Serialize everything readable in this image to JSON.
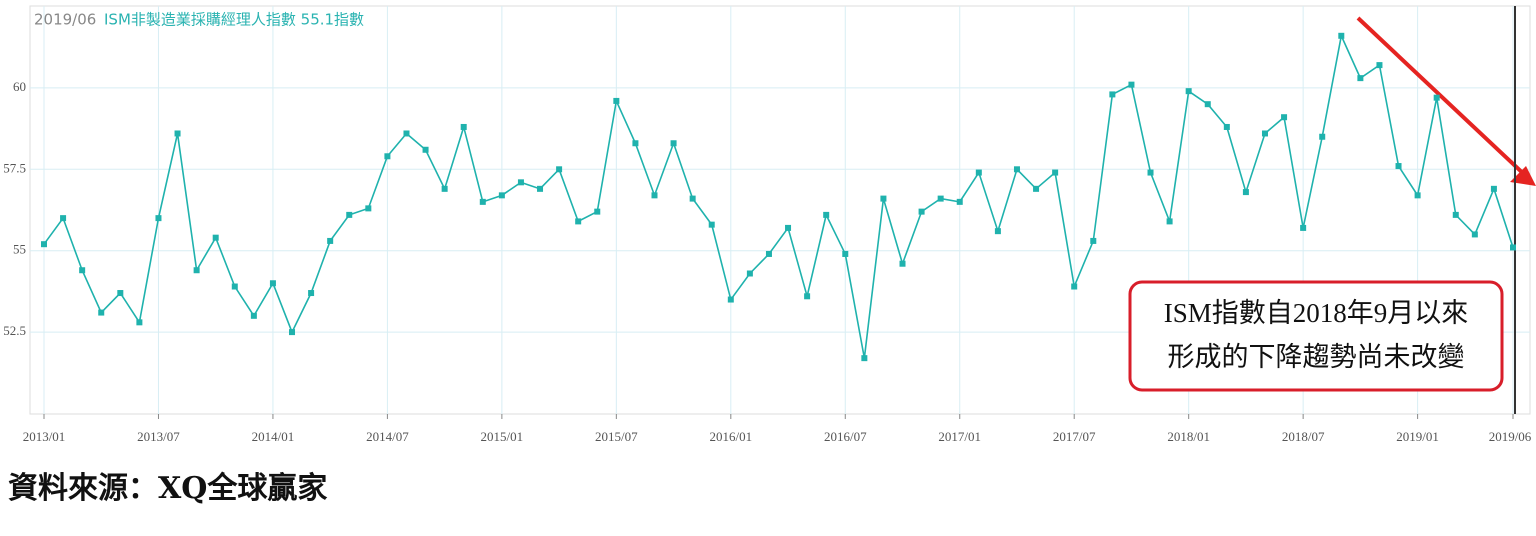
{
  "chart_data": {
    "type": "line",
    "header_date": "2019/06",
    "header_title": "ISM非製造業採購經理人指數 55.1指數",
    "categories": [
      "2013/01",
      null,
      null,
      null,
      null,
      null,
      "2013/07",
      null,
      null,
      null,
      null,
      null,
      "2014/01",
      null,
      null,
      null,
      null,
      null,
      "2014/07",
      null,
      null,
      null,
      null,
      null,
      "2015/01",
      null,
      null,
      null,
      null,
      null,
      "2015/07",
      null,
      null,
      null,
      null,
      null,
      "2016/01",
      null,
      null,
      null,
      null,
      null,
      "2016/07",
      null,
      null,
      null,
      null,
      null,
      "2017/01",
      null,
      null,
      null,
      null,
      null,
      "2017/07",
      null,
      null,
      null,
      null,
      null,
      "2018/01",
      null,
      null,
      null,
      null,
      null,
      "2018/07",
      null,
      null,
      null,
      null,
      null,
      "2019/01",
      null,
      null,
      null,
      null,
      "2019/06"
    ],
    "series": [
      {
        "name": "ISM非製造業採購經理人指數",
        "color": "#1fb2ad",
        "values": [
          55.2,
          56.0,
          54.4,
          53.1,
          53.7,
          52.8,
          56.0,
          58.6,
          54.4,
          55.4,
          53.9,
          53.0,
          54.0,
          52.5,
          53.7,
          55.3,
          56.1,
          56.3,
          57.9,
          58.6,
          58.1,
          56.9,
          58.8,
          56.5,
          56.7,
          57.1,
          56.9,
          57.5,
          55.9,
          56.2,
          59.6,
          58.3,
          56.7,
          58.3,
          56.6,
          55.8,
          53.5,
          54.3,
          54.9,
          55.7,
          53.6,
          56.1,
          54.9,
          51.7,
          56.6,
          54.6,
          56.2,
          56.6,
          56.5,
          57.4,
          55.6,
          57.5,
          56.9,
          57.4,
          53.9,
          55.3,
          59.8,
          60.1,
          57.4,
          55.9,
          59.9,
          59.5,
          58.8,
          56.8,
          58.6,
          59.1,
          55.7,
          58.5,
          61.6,
          60.3,
          60.7,
          57.6,
          56.7,
          59.7,
          56.1,
          55.5,
          56.9,
          55.1
        ]
      }
    ],
    "ylim": [
      50,
      62.5
    ],
    "yticks": [
      52.5,
      55,
      57.5,
      60
    ],
    "grid": true,
    "annotation": [
      "ISM指數自2018年9月以來",
      "形成的下降趨勢尚未改變"
    ],
    "source": "資料來源：XQ全球贏家"
  }
}
